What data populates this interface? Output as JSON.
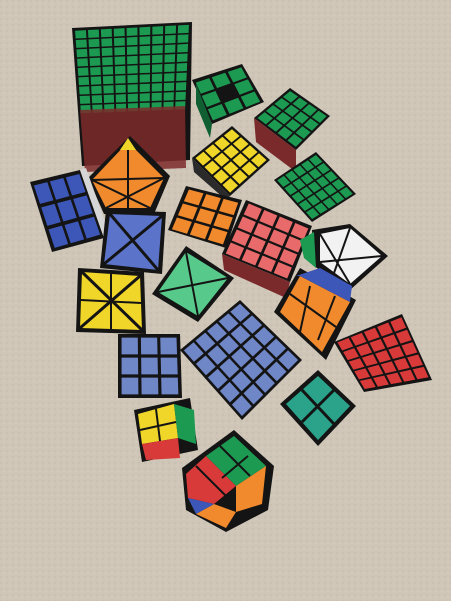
{
  "image": {
    "description_visible_text": "",
    "colors": {
      "carpet": "#cfc6b8",
      "carpet_shadow": "#b9b0a2",
      "plastic": "#141414",
      "green": "#1d9a52",
      "dark_green": "#137a3f",
      "red": "#d83a3a",
      "pink": "#e96a6a",
      "orange": "#f08a2c",
      "yellow": "#f1d62a",
      "blue": "#3d57b8",
      "light_blue": "#6f86c7",
      "white": "#f2f2f2",
      "teal": "#2aa38a"
    }
  }
}
